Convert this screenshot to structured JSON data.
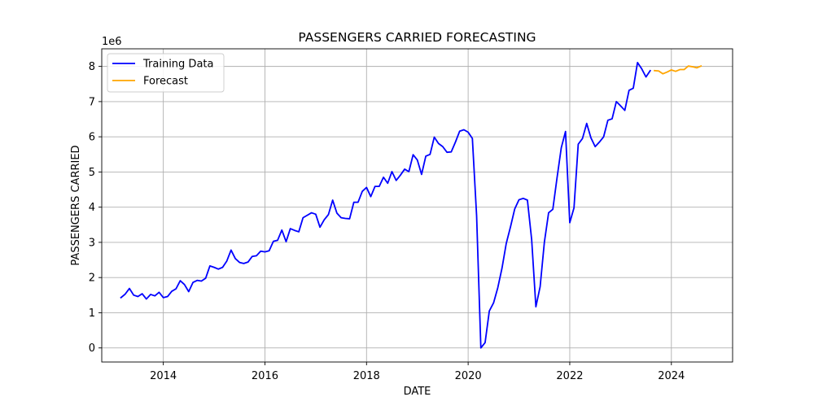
{
  "chart_data": {
    "type": "line",
    "title": "PASSENGERS CARRIED FORECASTING",
    "xlabel": "DATE",
    "ylabel": "PASSENGERS CARRIED",
    "y_offset_label": "1e6",
    "y_scale_factor": 1000000,
    "xlim": [
      "2012-10-15",
      "2025-03-15"
    ],
    "ylim": [
      -400000,
      8500000
    ],
    "x_ticks": [
      "2014-01-01",
      "2016-01-01",
      "2018-01-01",
      "2020-01-01",
      "2022-01-01",
      "2024-01-01"
    ],
    "x_tick_labels": [
      "2014",
      "2016",
      "2018",
      "2020",
      "2022",
      "2024"
    ],
    "y_ticks": [
      0,
      1000000,
      2000000,
      3000000,
      4000000,
      5000000,
      6000000,
      7000000,
      8000000
    ],
    "y_tick_labels": [
      "0",
      "1",
      "2",
      "3",
      "4",
      "5",
      "6",
      "7",
      "8"
    ],
    "grid": true,
    "legend": {
      "placement": "top-left",
      "entries": [
        "Training Data",
        "Forecast"
      ]
    },
    "series": [
      {
        "name": "Training Data",
        "color": "#0000ff",
        "points": [
          [
            "2013-03-01",
            1430000
          ],
          [
            "2013-04-01",
            1530000
          ],
          [
            "2013-05-01",
            1690000
          ],
          [
            "2013-06-01",
            1500000
          ],
          [
            "2013-07-01",
            1460000
          ],
          [
            "2013-08-01",
            1540000
          ],
          [
            "2013-09-01",
            1390000
          ],
          [
            "2013-10-01",
            1520000
          ],
          [
            "2013-11-01",
            1480000
          ],
          [
            "2013-12-01",
            1580000
          ],
          [
            "2014-01-01",
            1430000
          ],
          [
            "2014-02-01",
            1460000
          ],
          [
            "2014-03-01",
            1610000
          ],
          [
            "2014-04-01",
            1680000
          ],
          [
            "2014-05-01",
            1910000
          ],
          [
            "2014-06-01",
            1800000
          ],
          [
            "2014-07-01",
            1600000
          ],
          [
            "2014-08-01",
            1860000
          ],
          [
            "2014-09-01",
            1920000
          ],
          [
            "2014-10-01",
            1900000
          ],
          [
            "2014-11-01",
            1980000
          ],
          [
            "2014-12-01",
            2330000
          ],
          [
            "2015-01-01",
            2290000
          ],
          [
            "2015-02-01",
            2240000
          ],
          [
            "2015-03-01",
            2290000
          ],
          [
            "2015-04-01",
            2470000
          ],
          [
            "2015-05-01",
            2780000
          ],
          [
            "2015-06-01",
            2540000
          ],
          [
            "2015-07-01",
            2430000
          ],
          [
            "2015-08-01",
            2400000
          ],
          [
            "2015-09-01",
            2440000
          ],
          [
            "2015-10-01",
            2600000
          ],
          [
            "2015-11-01",
            2620000
          ],
          [
            "2015-12-01",
            2750000
          ],
          [
            "2016-01-01",
            2730000
          ],
          [
            "2016-02-01",
            2760000
          ],
          [
            "2016-03-01",
            3030000
          ],
          [
            "2016-04-01",
            3060000
          ],
          [
            "2016-05-01",
            3350000
          ],
          [
            "2016-06-01",
            3020000
          ],
          [
            "2016-07-01",
            3390000
          ],
          [
            "2016-08-01",
            3340000
          ],
          [
            "2016-09-01",
            3300000
          ],
          [
            "2016-10-01",
            3700000
          ],
          [
            "2016-11-01",
            3770000
          ],
          [
            "2016-12-01",
            3840000
          ],
          [
            "2017-01-01",
            3800000
          ],
          [
            "2017-02-01",
            3430000
          ],
          [
            "2017-03-01",
            3640000
          ],
          [
            "2017-04-01",
            3790000
          ],
          [
            "2017-05-01",
            4200000
          ],
          [
            "2017-06-01",
            3830000
          ],
          [
            "2017-07-01",
            3700000
          ],
          [
            "2017-08-01",
            3680000
          ],
          [
            "2017-09-01",
            3670000
          ],
          [
            "2017-10-01",
            4140000
          ],
          [
            "2017-11-01",
            4140000
          ],
          [
            "2017-12-01",
            4450000
          ],
          [
            "2018-01-01",
            4560000
          ],
          [
            "2018-02-01",
            4300000
          ],
          [
            "2018-03-01",
            4590000
          ],
          [
            "2018-04-01",
            4590000
          ],
          [
            "2018-05-01",
            4850000
          ],
          [
            "2018-06-01",
            4680000
          ],
          [
            "2018-07-01",
            5010000
          ],
          [
            "2018-08-01",
            4760000
          ],
          [
            "2018-09-01",
            4910000
          ],
          [
            "2018-10-01",
            5080000
          ],
          [
            "2018-11-01",
            5010000
          ],
          [
            "2018-12-01",
            5490000
          ],
          [
            "2019-01-01",
            5340000
          ],
          [
            "2019-02-01",
            4930000
          ],
          [
            "2019-03-01",
            5450000
          ],
          [
            "2019-04-01",
            5500000
          ],
          [
            "2019-05-01",
            5990000
          ],
          [
            "2019-06-01",
            5810000
          ],
          [
            "2019-07-01",
            5720000
          ],
          [
            "2019-08-01",
            5560000
          ],
          [
            "2019-09-01",
            5570000
          ],
          [
            "2019-10-01",
            5850000
          ],
          [
            "2019-11-01",
            6160000
          ],
          [
            "2019-12-01",
            6200000
          ],
          [
            "2020-01-01",
            6130000
          ],
          [
            "2020-02-01",
            5950000
          ],
          [
            "2020-03-01",
            3750000
          ],
          [
            "2020-04-01",
            0
          ],
          [
            "2020-05-01",
            150000
          ],
          [
            "2020-06-01",
            1050000
          ],
          [
            "2020-07-01",
            1280000
          ],
          [
            "2020-08-01",
            1710000
          ],
          [
            "2020-09-01",
            2270000
          ],
          [
            "2020-10-01",
            2970000
          ],
          [
            "2020-11-01",
            3440000
          ],
          [
            "2020-12-01",
            3950000
          ],
          [
            "2021-01-01",
            4210000
          ],
          [
            "2021-02-01",
            4250000
          ],
          [
            "2021-03-01",
            4200000
          ],
          [
            "2021-04-01",
            3080000
          ],
          [
            "2021-05-01",
            1170000
          ],
          [
            "2021-06-01",
            1740000
          ],
          [
            "2021-07-01",
            3000000
          ],
          [
            "2021-08-01",
            3840000
          ],
          [
            "2021-09-01",
            3940000
          ],
          [
            "2021-10-01",
            4840000
          ],
          [
            "2021-11-01",
            5690000
          ],
          [
            "2021-12-01",
            6150000
          ],
          [
            "2022-01-01",
            3560000
          ],
          [
            "2022-02-01",
            3980000
          ],
          [
            "2022-03-01",
            5790000
          ],
          [
            "2022-04-01",
            5950000
          ],
          [
            "2022-05-01",
            6380000
          ],
          [
            "2022-06-01",
            5970000
          ],
          [
            "2022-07-01",
            5720000
          ],
          [
            "2022-08-01",
            5850000
          ],
          [
            "2022-09-01",
            6000000
          ],
          [
            "2022-10-01",
            6470000
          ],
          [
            "2022-11-01",
            6510000
          ],
          [
            "2022-12-01",
            7000000
          ],
          [
            "2023-01-01",
            6880000
          ],
          [
            "2023-02-01",
            6750000
          ],
          [
            "2023-03-01",
            7320000
          ],
          [
            "2023-04-01",
            7380000
          ],
          [
            "2023-05-01",
            8110000
          ],
          [
            "2023-06-01",
            7930000
          ],
          [
            "2023-07-01",
            7700000
          ],
          [
            "2023-08-01",
            7880000
          ]
        ]
      },
      {
        "name": "Forecast",
        "color": "#ffa500",
        "points": [
          [
            "2023-09-01",
            7880000
          ],
          [
            "2023-10-01",
            7870000
          ],
          [
            "2023-11-01",
            7790000
          ],
          [
            "2023-12-01",
            7840000
          ],
          [
            "2024-01-01",
            7900000
          ],
          [
            "2024-02-01",
            7860000
          ],
          [
            "2024-03-01",
            7910000
          ],
          [
            "2024-04-01",
            7910000
          ],
          [
            "2024-05-01",
            8010000
          ],
          [
            "2024-06-01",
            7990000
          ],
          [
            "2024-07-01",
            7960000
          ],
          [
            "2024-08-01",
            8010000
          ]
        ]
      }
    ]
  }
}
